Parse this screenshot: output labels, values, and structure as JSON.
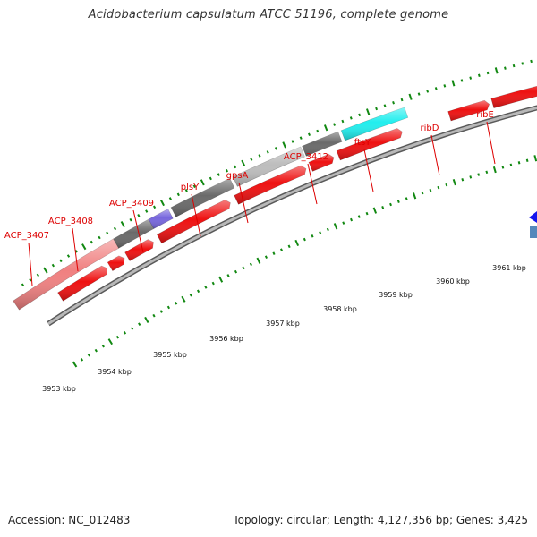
{
  "title": "Acidobacterium capsulatum ATCC 51196, complete genome",
  "footer": {
    "accession": "Accession: NC_012483",
    "topology": "Topology: circular; Length: 4,127,356 bp; Genes: 3,425"
  },
  "gene_labels": [
    "ACP_3407",
    "ACP_3408",
    "ACP_3409",
    "plsY",
    "gpsA",
    "ACP_3412",
    "ftsY",
    "ribD",
    "ribE"
  ],
  "kbp_labels": [
    "3953 kbp",
    "3954 kbp",
    "3955 kbp",
    "3956 kbp",
    "3957 kbp",
    "3958 kbp",
    "3959 kbp",
    "3960 kbp",
    "3961 kbp"
  ],
  "colors": {
    "cds": "#ee1111",
    "backbone": "#8a8a8a",
    "tick": "#118811",
    "label": "#dd0000",
    "feature_pink": "#f08080",
    "feature_purple": "#7766dd",
    "feature_dark_gray": "#6a6a6a",
    "feature_light_gray": "#bdbdbd",
    "feature_cyan": "#22eeee",
    "feature_lime": "#aaee33",
    "feature_blue": "#1515ee",
    "feature_steel": "#5588bb"
  }
}
